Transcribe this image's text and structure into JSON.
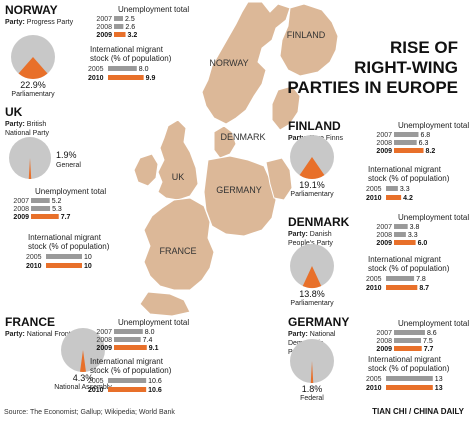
{
  "title": {
    "line1": "RISE OF",
    "line2": "RIGHT-WING",
    "line3": "PARTIES IN EUROPE"
  },
  "source": "Source: The Economist; Gallup; Wikipedia; World Bank",
  "credit": "TIAN CHI / CHINA DAILY",
  "map_labels": [
    "NORWAY",
    "FINLAND",
    "DENMARK",
    "UK",
    "GERMANY",
    "FRANCE"
  ],
  "colors": {
    "orange": "#e8702a",
    "gray": "#9a9a9a",
    "map": "#dcb898",
    "pie_gray": "#c8c8c8"
  },
  "chart_data": [
    {
      "country": "NORWAY",
      "party_label": "Party:",
      "party": "Progress Party",
      "type": "pie",
      "share_pct": 22.9,
      "share_text": "22.9%",
      "body": "Parliamentary",
      "unemployment": {
        "title": "Unemployment total",
        "years": [
          "2007",
          "2008",
          "2009"
        ],
        "values": [
          2.5,
          2.6,
          3.2
        ],
        "labels": [
          "2.5",
          "2.6",
          "3.2"
        ]
      },
      "migrant": {
        "title_line1": "International migrant",
        "title_line2": "stock (% of population)",
        "years": [
          "2005",
          "2010"
        ],
        "values": [
          8.0,
          9.9
        ],
        "labels": [
          "8.0",
          "9.9"
        ]
      }
    },
    {
      "country": "UK",
      "party_label": "Party:",
      "party": "British National Party",
      "type": "pie",
      "share_pct": 1.9,
      "share_text": "1.9%",
      "body": "General",
      "unemployment": {
        "title": "Unemployment total",
        "years": [
          "2007",
          "2008",
          "2009"
        ],
        "values": [
          5.2,
          5.3,
          7.7
        ],
        "labels": [
          "5.2",
          "5.3",
          "7.7"
        ]
      },
      "migrant": {
        "title_line1": "International migrant",
        "title_line2": "stock (% of population)",
        "years": [
          "2005",
          "2010"
        ],
        "values": [
          10,
          10
        ],
        "labels": [
          "10",
          "10"
        ]
      }
    },
    {
      "country": "FRANCE",
      "party_label": "Party:",
      "party": "National Front",
      "type": "pie",
      "share_pct": 4.3,
      "share_text": "4.3%",
      "body": "National Assembly",
      "unemployment": {
        "title": "Unemployment total",
        "years": [
          "2007",
          "2008",
          "2009"
        ],
        "values": [
          8.0,
          7.4,
          9.1
        ],
        "labels": [
          "8.0",
          "7.4",
          "9.1"
        ]
      },
      "migrant": {
        "title_line1": "International migrant",
        "title_line2": "stock (% of population)",
        "years": [
          "2005",
          "2010"
        ],
        "values": [
          10.6,
          10.6
        ],
        "labels": [
          "10.6",
          "10.6"
        ]
      }
    },
    {
      "country": "FINLAND",
      "party_label": "Party:",
      "party": "True Finns",
      "type": "pie",
      "share_pct": 19.1,
      "share_text": "19.1%",
      "body": "Parliamentary",
      "unemployment": {
        "title": "Unemployment total",
        "years": [
          "2007",
          "2008",
          "2009"
        ],
        "values": [
          6.8,
          6.3,
          8.2
        ],
        "labels": [
          "6.8",
          "6.3",
          "8.2"
        ]
      },
      "migrant": {
        "title_line1": "International migrant",
        "title_line2": "stock (% of population)",
        "years": [
          "2005",
          "2010"
        ],
        "values": [
          3.3,
          4.2
        ],
        "labels": [
          "3.3",
          "4.2"
        ]
      }
    },
    {
      "country": "DENMARK",
      "party_label": "Party:",
      "party": "Danish People's Party",
      "type": "pie",
      "share_pct": 13.8,
      "share_text": "13.8%",
      "body": "Parliamentary",
      "unemployment": {
        "title": "Unemployment total",
        "years": [
          "2007",
          "2008",
          "2009"
        ],
        "values": [
          3.8,
          3.3,
          6.0
        ],
        "labels": [
          "3.8",
          "3.3",
          "6.0"
        ]
      },
      "migrant": {
        "title_line1": "International migrant",
        "title_line2": "stock (% of population)",
        "years": [
          "2005",
          "2010"
        ],
        "values": [
          7.8,
          8.7
        ],
        "labels": [
          "7.8",
          "8.7"
        ]
      }
    },
    {
      "country": "GERMANY",
      "party_label": "Party:",
      "party": "National Democratic Party",
      "type": "pie",
      "share_pct": 1.8,
      "share_text": "1.8%",
      "body": "Federal",
      "unemployment": {
        "title": "Unemployment total",
        "years": [
          "2007",
          "2008",
          "2009"
        ],
        "values": [
          8.6,
          7.5,
          7.7
        ],
        "labels": [
          "8.6",
          "7.5",
          "7.7"
        ]
      },
      "migrant": {
        "title_line1": "International migrant",
        "title_line2": "stock (% of population)",
        "years": [
          "2005",
          "2010"
        ],
        "values": [
          13,
          13
        ],
        "labels": [
          "13",
          "13"
        ]
      }
    }
  ]
}
